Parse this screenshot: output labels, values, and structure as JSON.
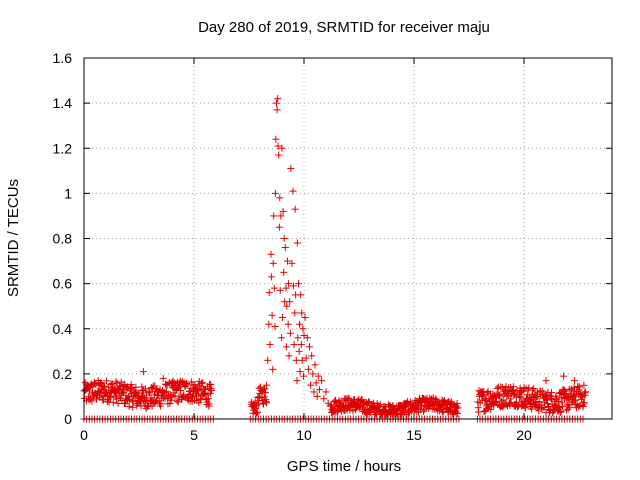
{
  "chart_data": {
    "type": "scatter",
    "title": "Day 280 of 2019, SRMTID for receiver maju",
    "xlabel": "GPS time / hours",
    "ylabel": "SRMTID / TECUs",
    "xlim": [
      0,
      24
    ],
    "ylim": [
      0,
      1.6
    ],
    "xticks": [
      0,
      5,
      10,
      15,
      20
    ],
    "xtick_labels": [
      "0",
      "5",
      "10",
      "15",
      "20"
    ],
    "yticks": [
      0,
      0.2,
      0.4,
      0.6,
      0.8,
      1,
      1.2,
      1.4,
      1.6
    ],
    "ytick_labels": [
      "0",
      "0.2",
      "0.4",
      "0.6",
      "0.8",
      "1",
      "1.2",
      "1.4",
      "1.6"
    ],
    "grid": true,
    "marker": "plus",
    "color": "#e00000",
    "series": [
      {
        "name": "SRMTID",
        "segments": [
          {
            "x_start": 0.0,
            "x_end": 5.8,
            "base": 0.11,
            "spread": 0.05,
            "step": 0.018
          },
          {
            "x_start": 7.6,
            "x_end": 7.9,
            "base": 0.04,
            "spread": 0.03,
            "step": 0.02
          },
          {
            "x_start": 7.9,
            "x_end": 8.3,
            "base": 0.09,
            "spread": 0.04,
            "step": 0.02
          },
          {
            "x_start": 11.2,
            "x_end": 17.0,
            "base": 0.05,
            "spread": 0.03,
            "step": 0.018
          },
          {
            "x_start": 17.9,
            "x_end": 22.8,
            "base": 0.09,
            "spread": 0.05,
            "step": 0.018
          }
        ],
        "zero_points": {
          "x_start": 0.0,
          "x_end": 22.8,
          "step": 0.12,
          "gaps": [
            [
              5.9,
              7.5
            ],
            [
              17.1,
              17.8
            ]
          ]
        },
        "points": [
          {
            "x": 8.3,
            "y": 0.15
          },
          {
            "x": 8.35,
            "y": 0.26
          },
          {
            "x": 8.4,
            "y": 0.42
          },
          {
            "x": 8.42,
            "y": 0.56
          },
          {
            "x": 8.45,
            "y": 0.33
          },
          {
            "x": 8.5,
            "y": 0.73
          },
          {
            "x": 8.52,
            "y": 0.63
          },
          {
            "x": 8.55,
            "y": 0.46
          },
          {
            "x": 8.58,
            "y": 0.22
          },
          {
            "x": 8.6,
            "y": 0.69
          },
          {
            "x": 8.62,
            "y": 0.9
          },
          {
            "x": 8.65,
            "y": 0.58
          },
          {
            "x": 8.68,
            "y": 0.41
          },
          {
            "x": 8.7,
            "y": 1.0
          },
          {
            "x": 8.72,
            "y": 1.24
          },
          {
            "x": 8.75,
            "y": 1.4
          },
          {
            "x": 8.78,
            "y": 1.37
          },
          {
            "x": 8.8,
            "y": 1.42
          },
          {
            "x": 8.82,
            "y": 1.21
          },
          {
            "x": 8.85,
            "y": 1.17
          },
          {
            "x": 8.88,
            "y": 0.85
          },
          {
            "x": 8.9,
            "y": 0.98
          },
          {
            "x": 8.92,
            "y": 0.57
          },
          {
            "x": 8.95,
            "y": 0.9
          },
          {
            "x": 8.98,
            "y": 0.36
          },
          {
            "x": 9.0,
            "y": 1.2
          },
          {
            "x": 9.02,
            "y": 0.45
          },
          {
            "x": 9.05,
            "y": 0.92
          },
          {
            "x": 9.08,
            "y": 0.65
          },
          {
            "x": 9.1,
            "y": 0.8
          },
          {
            "x": 9.12,
            "y": 0.52
          },
          {
            "x": 9.15,
            "y": 0.76
          },
          {
            "x": 9.18,
            "y": 0.58
          },
          {
            "x": 9.2,
            "y": 0.32
          },
          {
            "x": 9.22,
            "y": 0.5
          },
          {
            "x": 9.25,
            "y": 0.7
          },
          {
            "x": 9.28,
            "y": 0.42
          },
          {
            "x": 9.3,
            "y": 0.6
          },
          {
            "x": 9.32,
            "y": 0.28
          },
          {
            "x": 9.35,
            "y": 0.52
          },
          {
            "x": 9.38,
            "y": 0.38
          },
          {
            "x": 9.4,
            "y": 1.11
          },
          {
            "x": 9.45,
            "y": 0.69
          },
          {
            "x": 9.5,
            "y": 1.01
          },
          {
            "x": 9.52,
            "y": 0.59
          },
          {
            "x": 9.55,
            "y": 0.33
          },
          {
            "x": 9.58,
            "y": 0.47
          },
          {
            "x": 9.6,
            "y": 0.93
          },
          {
            "x": 9.62,
            "y": 0.55
          },
          {
            "x": 9.65,
            "y": 0.26
          },
          {
            "x": 9.68,
            "y": 0.17
          },
          {
            "x": 9.7,
            "y": 0.78
          },
          {
            "x": 9.72,
            "y": 0.36
          },
          {
            "x": 9.75,
            "y": 0.6
          },
          {
            "x": 9.78,
            "y": 0.3
          },
          {
            "x": 9.8,
            "y": 0.42
          },
          {
            "x": 9.82,
            "y": 0.21
          },
          {
            "x": 9.85,
            "y": 0.55
          },
          {
            "x": 9.88,
            "y": 0.33
          },
          {
            "x": 9.9,
            "y": 0.47
          },
          {
            "x": 9.92,
            "y": 0.26
          },
          {
            "x": 9.95,
            "y": 0.4
          },
          {
            "x": 9.98,
            "y": 0.19
          },
          {
            "x": 10.0,
            "y": 0.37
          },
          {
            "x": 10.05,
            "y": 0.45
          },
          {
            "x": 10.1,
            "y": 0.27
          },
          {
            "x": 10.15,
            "y": 0.36
          },
          {
            "x": 10.2,
            "y": 0.22
          },
          {
            "x": 10.25,
            "y": 0.32
          },
          {
            "x": 10.3,
            "y": 0.15
          },
          {
            "x": 10.35,
            "y": 0.28
          },
          {
            "x": 10.4,
            "y": 0.2
          },
          {
            "x": 10.45,
            "y": 0.12
          },
          {
            "x": 10.5,
            "y": 0.24
          },
          {
            "x": 10.55,
            "y": 0.16
          },
          {
            "x": 10.6,
            "y": 0.1
          },
          {
            "x": 10.65,
            "y": 0.19
          },
          {
            "x": 10.7,
            "y": 0.13
          },
          {
            "x": 10.8,
            "y": 0.17
          },
          {
            "x": 10.9,
            "y": 0.09
          },
          {
            "x": 11.0,
            "y": 0.12
          },
          {
            "x": 11.1,
            "y": 0.07
          },
          {
            "x": 2.7,
            "y": 0.21
          },
          {
            "x": 3.6,
            "y": 0.18
          },
          {
            "x": 21.0,
            "y": 0.17
          },
          {
            "x": 21.8,
            "y": 0.19
          },
          {
            "x": 22.3,
            "y": 0.17
          }
        ]
      }
    ]
  }
}
